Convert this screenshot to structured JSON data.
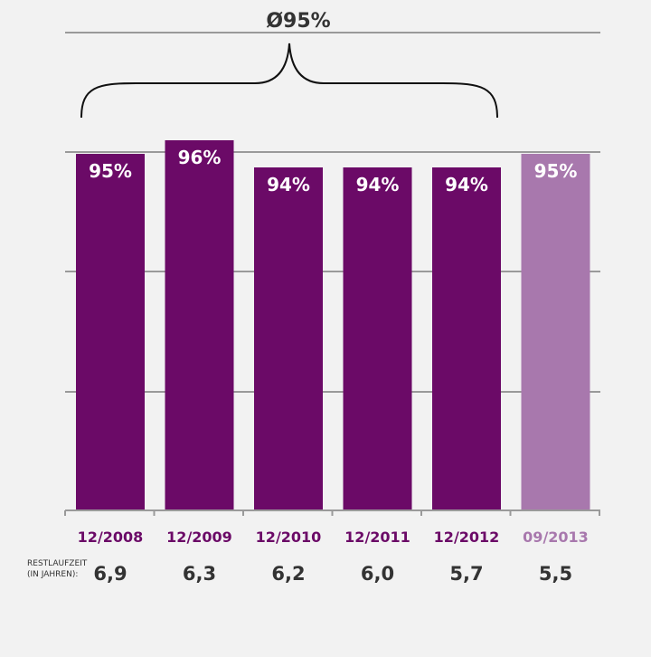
{
  "chart_data": {
    "type": "bar",
    "categories": [
      "12/2008",
      "12/2009",
      "12/2010",
      "12/2011",
      "12/2012",
      "09/2013"
    ],
    "values": [
      95,
      96,
      94,
      94,
      94,
      95
    ],
    "data_labels": [
      "95%",
      "96%",
      "94%",
      "94%",
      "94%",
      "95%"
    ],
    "average_label": "Ø95%",
    "colors": {
      "bar": "#6b0a67",
      "bar_highlight": "#a878ad",
      "grid": "#9a9a9a",
      "text": "#333333"
    },
    "highlighted_category": "09/2013",
    "grid": true
  },
  "remaining_term": {
    "label_line1": "RESTLAUFZEIT",
    "label_line2": "(IN JAHREN):",
    "values": [
      "6,9",
      "6,3",
      "6,2",
      "6,0",
      "5,7",
      "5,5"
    ]
  }
}
